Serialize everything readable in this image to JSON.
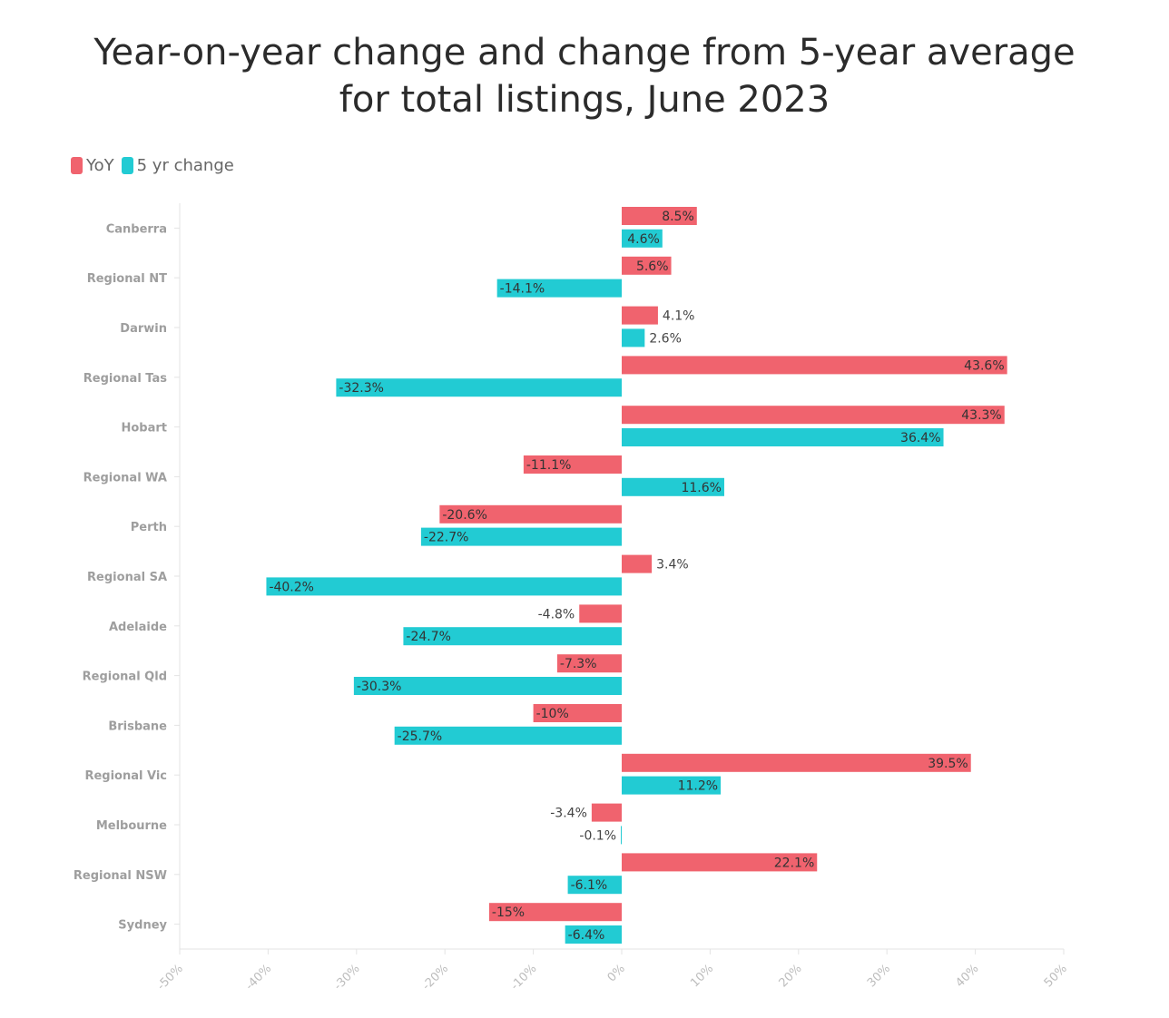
{
  "chart_data": {
    "type": "bar",
    "orientation": "horizontal",
    "title": "Year-on-year change and change from 5-year average for total listings, June 2023",
    "title_lines": [
      "Year-on-year change and change from 5-year average",
      "for total listings, June 2023"
    ],
    "categories": [
      "Canberra",
      "Regional NT",
      "Darwin",
      "Regional Tas",
      "Hobart",
      "Regional WA",
      "Perth",
      "Regional SA",
      "Adelaide",
      "Regional Qld",
      "Brisbane",
      "Regional Vic",
      "Melbourne",
      "Regional NSW",
      "Sydney"
    ],
    "series": [
      {
        "name": "YoY",
        "color": "#f0636e",
        "values": [
          8.5,
          5.6,
          4.1,
          43.6,
          43.3,
          -11.1,
          -20.6,
          3.4,
          -4.8,
          -7.3,
          -10,
          39.5,
          -3.4,
          22.1,
          -15
        ],
        "labels": [
          "8.5%",
          "5.6%",
          "4.1%",
          "43.6%",
          "43.3%",
          "-11.1%",
          "-20.6%",
          "3.4%",
          "-4.8%",
          "-7.3%",
          "-10%",
          "39.5%",
          "-3.4%",
          "22.1%",
          "-15%"
        ]
      },
      {
        "name": "5 yr change",
        "color": "#22cbd3",
        "values": [
          4.6,
          -14.1,
          2.6,
          -32.3,
          36.4,
          11.6,
          -22.7,
          -40.2,
          -24.7,
          -30.3,
          -25.7,
          11.2,
          -0.1,
          -6.1,
          -6.4
        ],
        "labels": [
          "4.6%",
          "-14.1%",
          "2.6%",
          "-32.3%",
          "36.4%",
          "11.6%",
          "-22.7%",
          "-40.2%",
          "-24.7%",
          "-30.3%",
          "-25.7%",
          "11.2%",
          "-0.1%",
          "-6.1%",
          "-6.4%"
        ]
      }
    ],
    "xlim": [
      -50,
      50
    ],
    "x_ticks": [
      -50,
      -40,
      -30,
      -20,
      -10,
      0,
      10,
      20,
      30,
      40,
      50
    ],
    "x_tick_labels": [
      "-50%",
      "-40%",
      "-30%",
      "-20%",
      "-10%",
      "0%",
      "10%",
      "20%",
      "30%",
      "40%",
      "50%"
    ],
    "legend_position": "top-left",
    "grid": false
  }
}
